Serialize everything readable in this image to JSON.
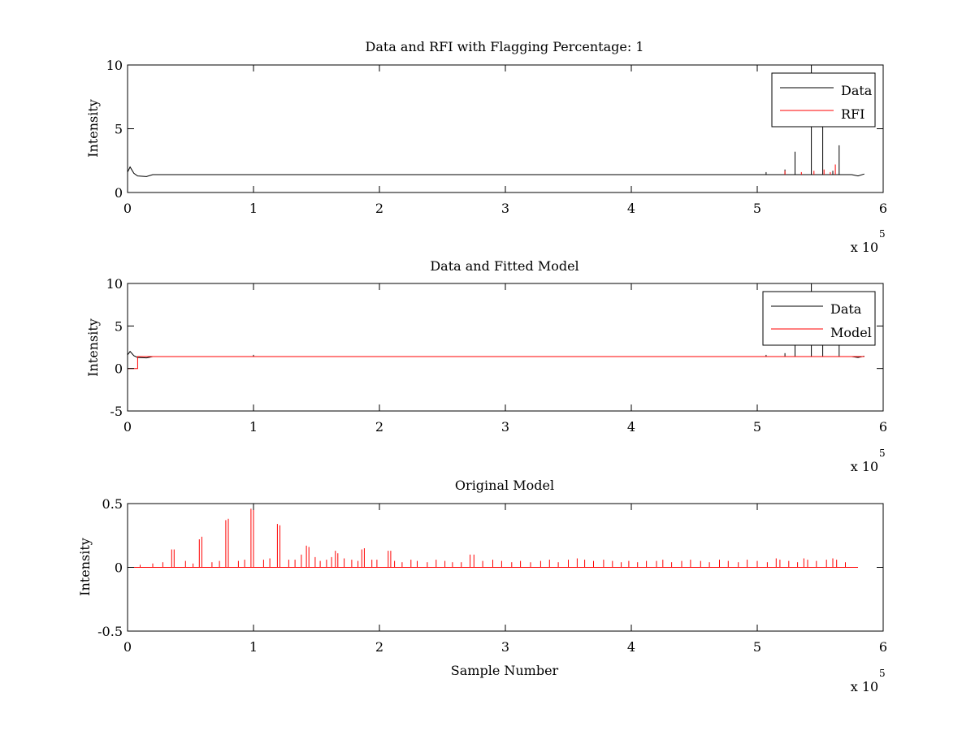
{
  "figure": {
    "background": "#ffffff",
    "data_color": "#000000",
    "rfi_color": "#ff0000"
  },
  "chart_data": [
    {
      "type": "line",
      "title": "Data and RFI with Flagging Percentage: 1",
      "xlabel": "",
      "ylabel": "Intensity",
      "xlim": [
        0,
        6
      ],
      "ylim": [
        0,
        10
      ],
      "xticks": [
        "0",
        "1",
        "2",
        "3",
        "4",
        "5",
        "6"
      ],
      "yticks": [
        "0",
        "5",
        "10"
      ],
      "xtick_values": [
        0,
        1,
        2,
        3,
        4,
        5,
        6
      ],
      "ytick_values": [
        0,
        5,
        10
      ],
      "x_multiplier": "x 10",
      "x_exponent": "5",
      "legend": {
        "position": "top-right",
        "entries": [
          {
            "label": "Data",
            "color": "#000000"
          },
          {
            "label": "RFI",
            "color": "#ff0000"
          }
        ]
      },
      "series": [
        {
          "name": "Data",
          "color": "#000000",
          "baseline": 1.4,
          "start_points": [
            [
              0,
              1.6
            ],
            [
              0.02,
              2.0
            ],
            [
              0.05,
              1.5
            ],
            [
              0.08,
              1.3
            ],
            [
              0.15,
              1.25
            ],
            [
              0.2,
              1.4
            ],
            [
              5.75,
              1.4
            ],
            [
              5.8,
              1.3
            ],
            [
              5.85,
              1.45
            ]
          ],
          "end": 5.85,
          "spikes": [
            [
              5.3,
              3.2
            ],
            [
              5.43,
              10.0
            ],
            [
              5.52,
              5.2
            ],
            [
              5.65,
              3.7
            ],
            [
              5.22,
              1.8
            ],
            [
              5.07,
              1.6
            ],
            [
              5.6,
              1.7
            ]
          ]
        },
        {
          "name": "RFI",
          "color": "#ff0000",
          "spikes": [
            [
              5.22,
              1.7
            ],
            [
              5.35,
              1.6
            ],
            [
              5.45,
              1.7
            ],
            [
              5.53,
              1.8
            ],
            [
              5.62,
              2.2
            ],
            [
              5.58,
              1.6
            ]
          ]
        }
      ]
    },
    {
      "type": "line",
      "title": "Data and Fitted Model",
      "xlabel": "",
      "ylabel": "Intensity",
      "xlim": [
        0,
        6
      ],
      "ylim": [
        -5,
        10
      ],
      "xticks": [
        "0",
        "1",
        "2",
        "3",
        "4",
        "5",
        "6"
      ],
      "yticks": [
        "-5",
        "0",
        "5",
        "10"
      ],
      "xtick_values": [
        0,
        1,
        2,
        3,
        4,
        5,
        6
      ],
      "ytick_values": [
        -5,
        0,
        5,
        10
      ],
      "x_multiplier": "x 10",
      "x_exponent": "5",
      "legend": {
        "position": "top-right",
        "entries": [
          {
            "label": "Data",
            "color": "#000000"
          },
          {
            "label": "Model",
            "color": "#ff0000"
          }
        ]
      },
      "series": [
        {
          "name": "Data",
          "color": "#000000",
          "baseline": 1.4,
          "start_points": [
            [
              0,
              1.6
            ],
            [
              0.02,
              2.0
            ],
            [
              0.05,
              1.5
            ],
            [
              0.08,
              1.3
            ],
            [
              0.15,
              1.25
            ],
            [
              0.2,
              1.4
            ],
            [
              5.75,
              1.4
            ],
            [
              5.8,
              1.3
            ],
            [
              5.85,
              1.45
            ]
          ],
          "end": 5.85,
          "spikes": [
            [
              5.3,
              3.2
            ],
            [
              5.43,
              10.0
            ],
            [
              5.52,
              5.2
            ],
            [
              5.65,
              3.7
            ],
            [
              5.22,
              1.8
            ],
            [
              5.07,
              1.6
            ],
            [
              1.0,
              1.6
            ]
          ]
        },
        {
          "name": "Model",
          "color": "#ff0000",
          "points": [
            [
              0,
              0
            ],
            [
              0.08,
              0
            ],
            [
              0.08,
              1.4
            ],
            [
              5.85,
              1.4
            ]
          ]
        }
      ]
    },
    {
      "type": "line",
      "title": "Original Model",
      "xlabel": "Sample Number",
      "ylabel": "Intensity",
      "xlim": [
        0,
        6
      ],
      "ylim": [
        -0.5,
        0.5
      ],
      "xticks": [
        "0",
        "1",
        "2",
        "3",
        "4",
        "5",
        "6"
      ],
      "yticks": [
        "-0.5",
        "0",
        "0.5"
      ],
      "xtick_values": [
        0,
        1,
        2,
        3,
        4,
        5,
        6
      ],
      "ytick_values": [
        -0.5,
        0,
        0.5
      ],
      "x_multiplier": "x 10",
      "x_exponent": "5",
      "series": [
        {
          "name": "Model",
          "color": "#ff0000",
          "baseline": 0,
          "end": 5.8,
          "spikes": [
            [
              0.35,
              0.14
            ],
            [
              0.37,
              0.14
            ],
            [
              0.57,
              0.22
            ],
            [
              0.59,
              0.24
            ],
            [
              0.78,
              0.37
            ],
            [
              0.8,
              0.38
            ],
            [
              0.98,
              0.46
            ],
            [
              1.0,
              0.45
            ],
            [
              1.19,
              0.34
            ],
            [
              1.21,
              0.33
            ],
            [
              1.42,
              0.17
            ],
            [
              1.44,
              0.16
            ],
            [
              1.65,
              0.13
            ],
            [
              1.67,
              0.11
            ],
            [
              1.86,
              0.14
            ],
            [
              1.88,
              0.15
            ],
            [
              2.07,
              0.13
            ],
            [
              2.09,
              0.13
            ],
            [
              2.72,
              0.1
            ],
            [
              2.75,
              0.1
            ],
            [
              0.1,
              0.02
            ],
            [
              0.2,
              0.03
            ],
            [
              0.28,
              0.04
            ],
            [
              0.46,
              0.05
            ],
            [
              0.52,
              0.03
            ],
            [
              0.67,
              0.04
            ],
            [
              0.73,
              0.05
            ],
            [
              0.88,
              0.05
            ],
            [
              0.93,
              0.06
            ],
            [
              1.08,
              0.06
            ],
            [
              1.13,
              0.07
            ],
            [
              1.28,
              0.06
            ],
            [
              1.33,
              0.06
            ],
            [
              1.38,
              0.1
            ],
            [
              1.49,
              0.08
            ],
            [
              1.53,
              0.05
            ],
            [
              1.58,
              0.06
            ],
            [
              1.62,
              0.08
            ],
            [
              1.72,
              0.07
            ],
            [
              1.78,
              0.06
            ],
            [
              1.83,
              0.05
            ],
            [
              1.94,
              0.06
            ],
            [
              1.98,
              0.06
            ],
            [
              2.12,
              0.05
            ],
            [
              2.18,
              0.04
            ],
            [
              2.25,
              0.06
            ],
            [
              2.3,
              0.05
            ],
            [
              2.38,
              0.04
            ],
            [
              2.45,
              0.06
            ],
            [
              2.52,
              0.05
            ],
            [
              2.58,
              0.04
            ],
            [
              2.65,
              0.04
            ],
            [
              2.82,
              0.05
            ],
            [
              2.9,
              0.06
            ],
            [
              2.97,
              0.05
            ],
            [
              3.05,
              0.04
            ],
            [
              3.12,
              0.05
            ],
            [
              3.2,
              0.04
            ],
            [
              3.28,
              0.05
            ],
            [
              3.35,
              0.06
            ],
            [
              3.42,
              0.04
            ],
            [
              3.5,
              0.06
            ],
            [
              3.57,
              0.07
            ],
            [
              3.63,
              0.06
            ],
            [
              3.7,
              0.05
            ],
            [
              3.78,
              0.06
            ],
            [
              3.85,
              0.05
            ],
            [
              3.92,
              0.04
            ],
            [
              3.98,
              0.05
            ],
            [
              4.05,
              0.04
            ],
            [
              4.12,
              0.05
            ],
            [
              4.2,
              0.05
            ],
            [
              4.25,
              0.06
            ],
            [
              4.32,
              0.04
            ],
            [
              4.4,
              0.05
            ],
            [
              4.47,
              0.06
            ],
            [
              4.55,
              0.05
            ],
            [
              4.62,
              0.04
            ],
            [
              4.7,
              0.06
            ],
            [
              4.77,
              0.05
            ],
            [
              4.85,
              0.04
            ],
            [
              4.92,
              0.06
            ],
            [
              5.0,
              0.05
            ],
            [
              5.08,
              0.04
            ],
            [
              5.15,
              0.07
            ],
            [
              5.18,
              0.06
            ],
            [
              5.25,
              0.05
            ],
            [
              5.32,
              0.04
            ],
            [
              5.37,
              0.07
            ],
            [
              5.4,
              0.06
            ],
            [
              5.47,
              0.05
            ],
            [
              5.55,
              0.06
            ],
            [
              5.6,
              0.07
            ],
            [
              5.63,
              0.06
            ],
            [
              5.7,
              0.04
            ]
          ]
        }
      ]
    }
  ]
}
